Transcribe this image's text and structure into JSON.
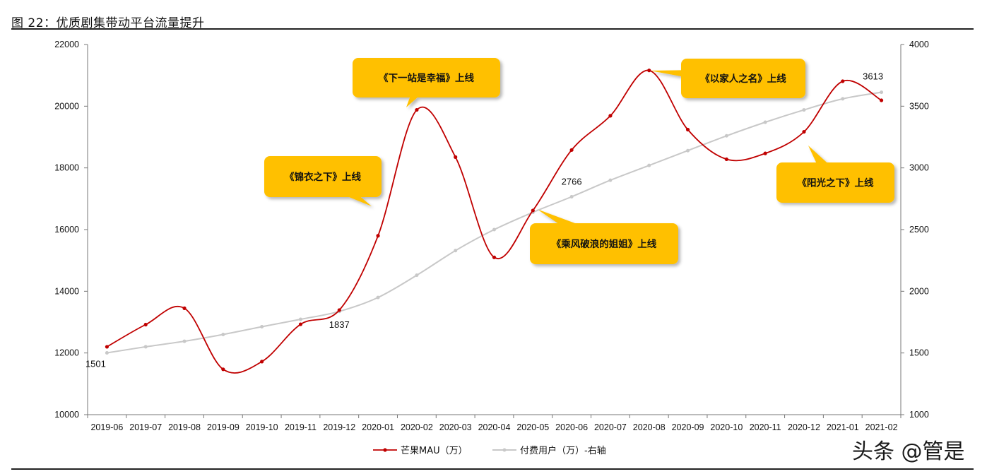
{
  "figure_title": "图 22：优质剧集带动平台流量提升",
  "watermark": "头条 @管是",
  "chart_data": {
    "type": "line",
    "categories": [
      "2019-06",
      "2019-07",
      "2019-08",
      "2019-09",
      "2019-10",
      "2019-11",
      "2019-12",
      "2020-01",
      "2020-02",
      "2020-03",
      "2020-04",
      "2020-05",
      "2020-06",
      "2020-07",
      "2020-08",
      "2020-09",
      "2020-10",
      "2020-11",
      "2020-12",
      "2021-01",
      "2021-02"
    ],
    "y_left": {
      "min": 10000,
      "max": 22000,
      "ticks": [
        10000,
        12000,
        14000,
        16000,
        18000,
        20000,
        22000
      ]
    },
    "y_right": {
      "min": 1000,
      "max": 4000,
      "ticks": [
        1000,
        1500,
        2000,
        2500,
        3000,
        3500,
        4000
      ]
    },
    "series": [
      {
        "name": "芒果MAU（万）",
        "axis": "left",
        "color": "#c00000",
        "values": [
          12200,
          12920,
          13450,
          11470,
          11720,
          12930,
          13390,
          15800,
          19880,
          18350,
          15100,
          16620,
          18580,
          19690,
          21160,
          19240,
          18280,
          18470,
          19170,
          20810,
          20190
        ]
      },
      {
        "name": "付费用户（万）-右轴",
        "axis": "right",
        "color": "#c8c8c8",
        "values": [
          1501,
          1550,
          1595,
          1650,
          1713,
          1773,
          1837,
          1950,
          2130,
          2330,
          2500,
          2640,
          2766,
          2900,
          3020,
          3140,
          3260,
          3370,
          3470,
          3560,
          3613
        ]
      }
    ],
    "data_labels": [
      {
        "series": 1,
        "index": 0,
        "text": "1501"
      },
      {
        "series": 1,
        "index": 6,
        "text": "1837"
      },
      {
        "series": 1,
        "index": 12,
        "text": "2766"
      },
      {
        "series": 1,
        "index": 20,
        "text": "3613"
      }
    ],
    "annotations": [
      {
        "text": "《锦衣之下》上线",
        "category": "2020-01",
        "value": 15800
      },
      {
        "text": "《下一站是幸福》上线",
        "category": "2020-02",
        "value": 19880
      },
      {
        "text": "《乘风破浪的姐姐》上线",
        "category": "2020-05",
        "value": 16620
      },
      {
        "text": "《以家人之名》上线",
        "category": "2020-08",
        "value": 21160
      },
      {
        "text": "《阳光之下》上线",
        "category": "2020-12",
        "value": 19170
      }
    ],
    "legend_position": "bottom",
    "grid": false
  }
}
